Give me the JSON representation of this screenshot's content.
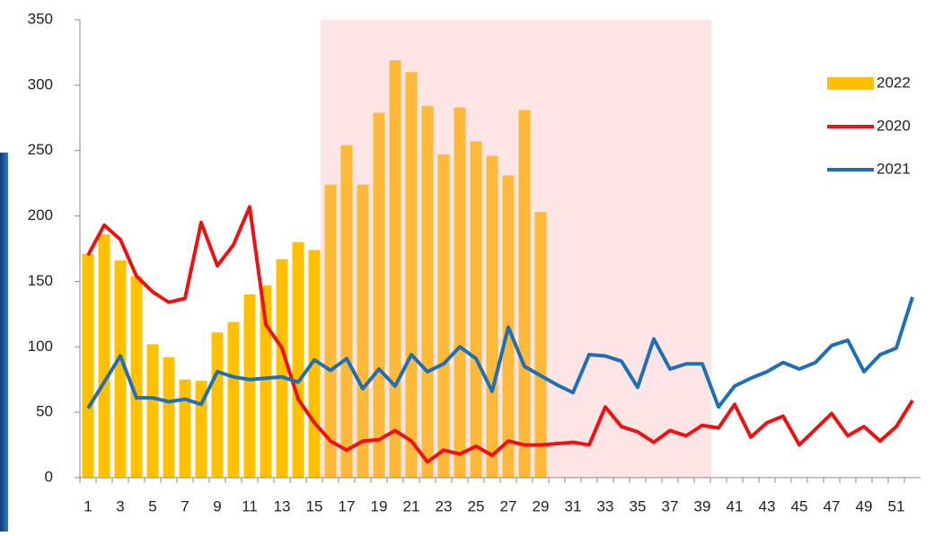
{
  "chart_data": {
    "type": "bar-line",
    "categories": [
      1,
      null,
      3,
      null,
      5,
      null,
      7,
      null,
      9,
      null,
      11,
      null,
      13,
      null,
      15,
      null,
      17,
      null,
      19,
      null,
      21,
      null,
      23,
      null,
      25,
      null,
      27,
      null,
      29,
      null,
      31,
      null,
      33,
      null,
      35,
      null,
      37,
      null,
      39,
      null,
      41,
      null,
      43,
      null,
      45,
      null,
      47,
      null,
      49,
      null,
      51,
      null
    ],
    "series": [
      {
        "name": "2022",
        "type": "bar",
        "color": "#FFC000",
        "values": [
          171,
          186,
          166,
          154,
          102,
          92,
          75,
          74,
          111,
          119,
          140,
          147,
          167,
          180,
          174,
          224,
          254,
          224,
          279,
          319,
          310,
          284,
          247,
          283,
          257,
          246,
          231,
          281,
          203,
          null,
          null,
          null,
          null,
          null,
          null,
          null,
          null,
          null,
          null,
          null,
          null,
          null,
          null,
          null,
          null,
          null,
          null,
          null,
          null,
          null,
          null,
          null
        ]
      },
      {
        "name": "2020",
        "type": "line",
        "color": "#EE1111",
        "values": [
          170,
          193,
          182,
          154,
          142,
          134,
          137,
          195,
          162,
          178,
          207,
          117,
          99,
          60,
          42,
          28,
          21,
          28,
          29,
          36,
          28,
          12,
          21,
          18,
          24,
          17,
          28,
          25,
          25,
          26,
          27,
          25,
          54,
          39,
          35,
          27,
          36,
          32,
          40,
          38,
          56,
          31,
          42,
          47,
          25,
          37,
          49,
          32,
          39,
          28,
          39,
          59
        ]
      },
      {
        "name": "2021",
        "type": "line",
        "color": "#1F6FB4",
        "values": [
          53,
          73,
          93,
          61,
          61,
          58,
          60,
          56,
          81,
          77,
          75,
          76,
          77,
          73,
          90,
          82,
          91,
          68,
          83,
          70,
          94,
          81,
          87,
          100,
          91,
          66,
          115,
          85,
          78,
          71,
          65,
          94,
          93,
          89,
          69,
          106,
          83,
          87,
          87,
          54,
          70,
          76,
          81,
          88,
          83,
          88,
          101,
          105,
          81,
          94,
          99,
          138
        ]
      }
    ],
    "ylim": [
      0,
      350
    ],
    "yticks": [
      0,
      50,
      100,
      150,
      200,
      250,
      300,
      350
    ],
    "legend": "right"
  }
}
